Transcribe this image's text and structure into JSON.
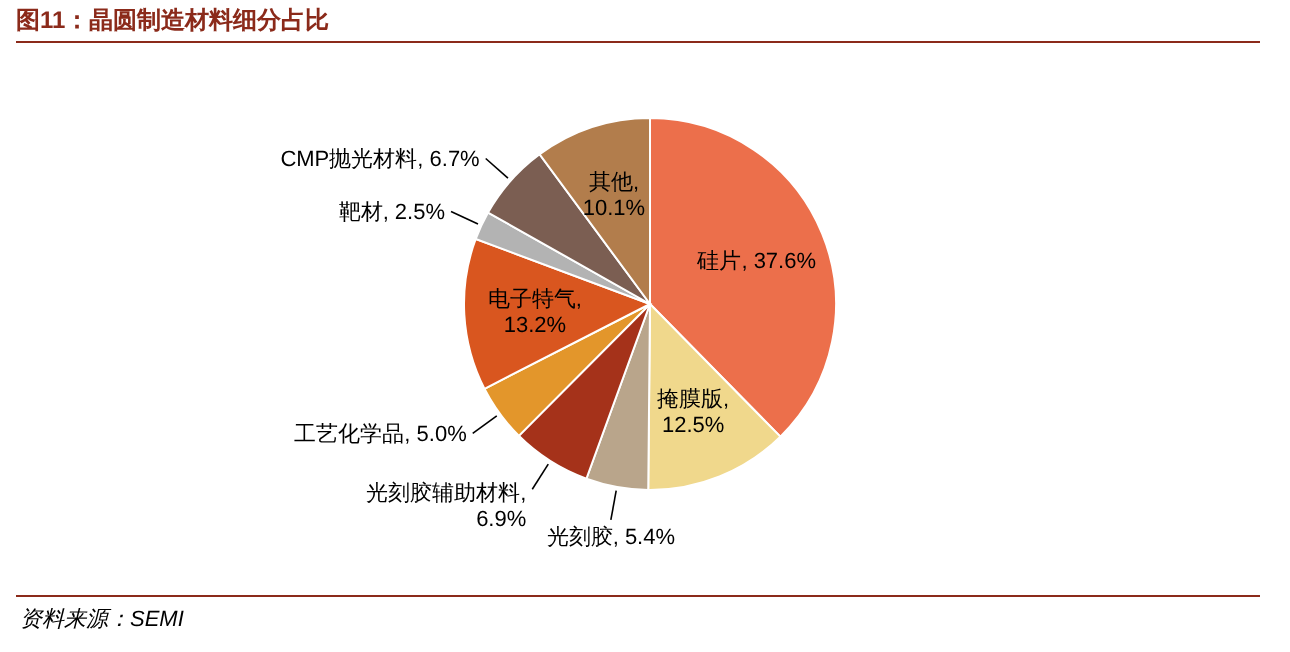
{
  "chart_data": {
    "type": "pie",
    "title": "图11：晶圆制造材料细分占比",
    "categories": [
      "硅片",
      "掩膜版",
      "光刻胶",
      "光刻胶辅助材料",
      "工艺化学品",
      "电子特气",
      "靶材",
      "CMP抛光材料",
      "其他"
    ],
    "values": [
      37.6,
      12.5,
      5.4,
      6.9,
      5.0,
      13.2,
      2.5,
      6.7,
      10.1
    ],
    "colors": [
      "#ec6f4b",
      "#f0d88c",
      "#b9a58b",
      "#a5321a",
      "#e3962b",
      "#d9561f",
      "#b3b3b3",
      "#7b5e52",
      "#b27d4c"
    ],
    "value_labels": [
      ", 37.6%",
      ",\n12.5%",
      ", 5.4%",
      ",\n6.9%",
      ", 5.0%",
      ",\n13.2%",
      ", 2.5%",
      ", 6.7%",
      ",\n10.1%"
    ],
    "annotations": [
      "资料来源：SEMI"
    ]
  }
}
